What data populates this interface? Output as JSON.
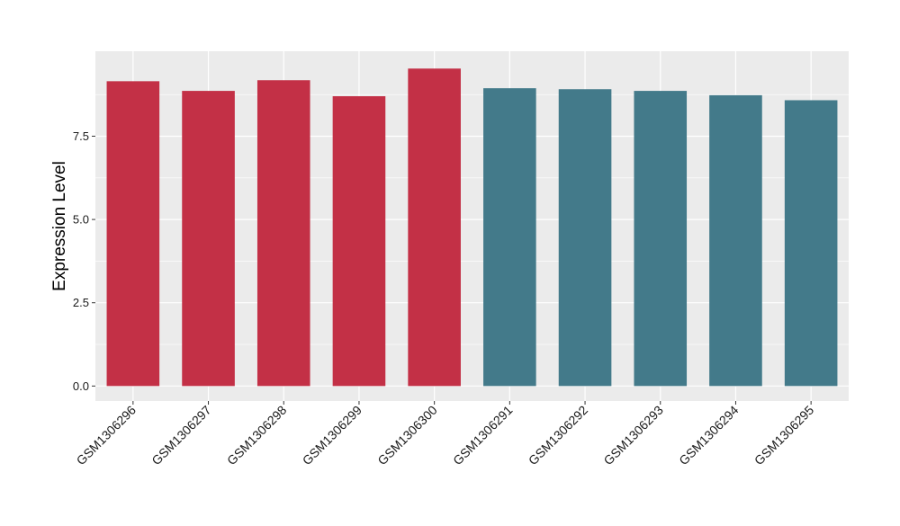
{
  "chart_data": {
    "type": "bar",
    "title": "",
    "xlabel": "",
    "ylabel": "Expression Level",
    "ylim": [
      -0.45,
      10.05
    ],
    "yticks": [
      0.0,
      2.5,
      5.0,
      7.5
    ],
    "ytick_labels": [
      "0.0",
      "2.5",
      "5.0",
      "7.5"
    ],
    "categories": [
      "GSM1306296",
      "GSM1306297",
      "GSM1306298",
      "GSM1306299",
      "GSM1306300",
      "GSM1306291",
      "GSM1306292",
      "GSM1306293",
      "GSM1306294",
      "GSM1306295"
    ],
    "values": [
      9.15,
      8.86,
      9.18,
      8.7,
      9.53,
      8.94,
      8.91,
      8.86,
      8.73,
      8.58
    ],
    "groups": [
      "group1",
      "group1",
      "group1",
      "group1",
      "group1",
      "group2",
      "group2",
      "group2",
      "group2",
      "group2"
    ],
    "group_colors": {
      "group1": "#c33046",
      "group2": "#437a8a"
    },
    "panel_background": "#ebebeb",
    "grid": true,
    "grid_color": "#ffffff",
    "legend": "none"
  }
}
